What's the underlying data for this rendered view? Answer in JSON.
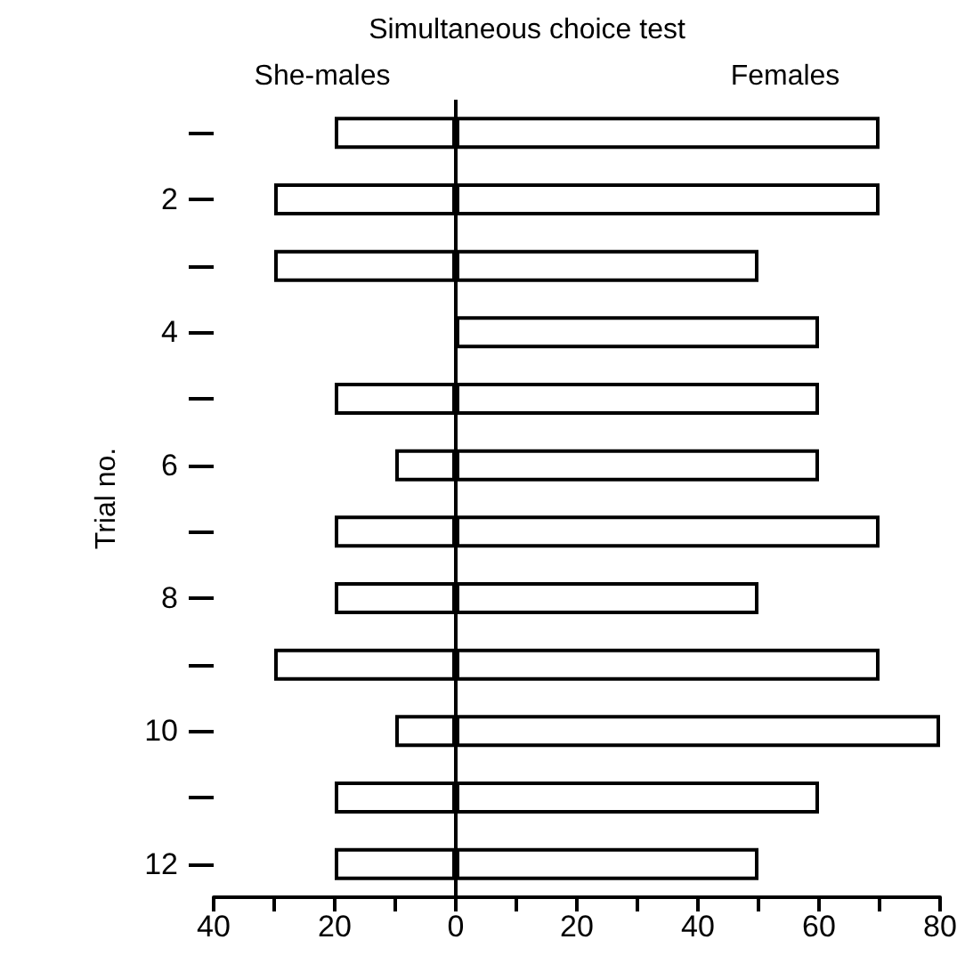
{
  "chart_data": {
    "type": "bar",
    "orientation": "horizontal",
    "title": "Simultaneous choice test",
    "ylabel": "Trial no.",
    "categories": [
      null,
      "2",
      null,
      "4",
      null,
      "6",
      null,
      "8",
      null,
      "10",
      null,
      "12"
    ],
    "series": [
      {
        "name": "She-males",
        "color": "#ffffff",
        "values": [
          -20,
          -30,
          -30,
          0,
          -20,
          -10,
          -20,
          -20,
          -30,
          -10,
          -20,
          -20
        ]
      },
      {
        "name": "Females",
        "color": "#ffffff",
        "values": [
          70,
          70,
          50,
          60,
          60,
          60,
          70,
          50,
          70,
          80,
          60,
          50
        ]
      }
    ],
    "xlim": [
      -40,
      80
    ],
    "xticks": [
      {
        "value": -40,
        "label": "40"
      },
      {
        "value": -30,
        "label": null
      },
      {
        "value": -20,
        "label": "20"
      },
      {
        "value": -10,
        "label": null
      },
      0,
      {
        "value": 10,
        "label": null
      },
      20,
      {
        "value": 30,
        "label": null
      },
      40,
      {
        "value": 50,
        "label": null
      },
      60,
      {
        "value": 70,
        "label": null
      },
      80
    ],
    "stacked": true,
    "ref_lines": [
      {
        "axis": "x",
        "value": 0
      }
    ],
    "grid": false,
    "legend": false
  }
}
